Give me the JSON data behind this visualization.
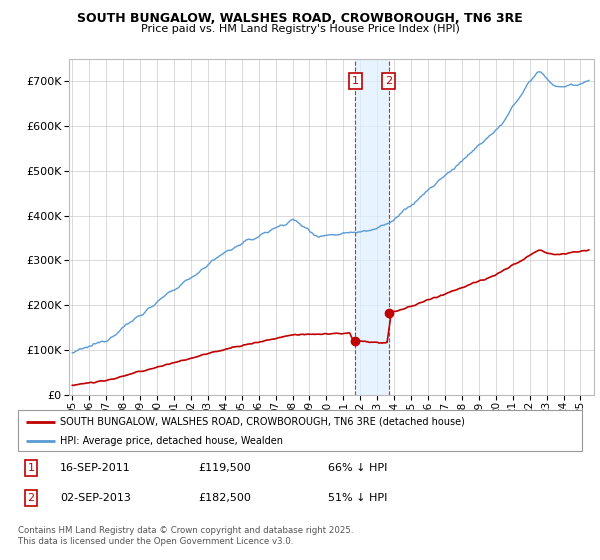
{
  "title": "SOUTH BUNGALOW, WALSHES ROAD, CROWBOROUGH, TN6 3RE",
  "subtitle": "Price paid vs. HM Land Registry's House Price Index (HPI)",
  "hpi_color": "#5b9bd5",
  "price_color": "#c00000",
  "shade_color": "#ddeeff",
  "sale1_date": 2011.71,
  "sale1_price": 119500,
  "sale1_label": "1",
  "sale2_date": 2013.67,
  "sale2_price": 182500,
  "sale2_label": "2",
  "legend_line1": "SOUTH BUNGALOW, WALSHES ROAD, CROWBOROUGH, TN6 3RE (detached house)",
  "legend_line2": "HPI: Average price, detached house, Wealden",
  "footer": "Contains HM Land Registry data © Crown copyright and database right 2025.\nThis data is licensed under the Open Government Licence v3.0.",
  "ylim_max": 750000,
  "xmin": 1994.8,
  "xmax": 2025.8
}
